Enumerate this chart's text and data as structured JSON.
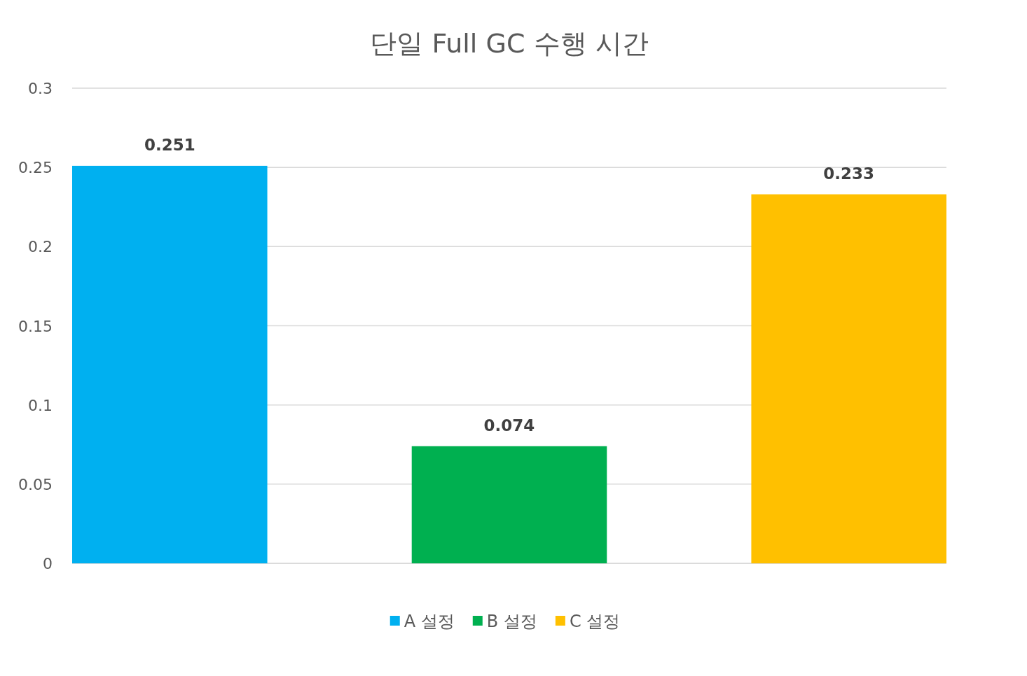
{
  "chart_data": {
    "type": "bar",
    "title": "단일 Full GC 수행 시간",
    "categories": [
      null
    ],
    "series": [
      {
        "name": "A 설정",
        "color": "#00b0f0",
        "values": [
          0.251
        ]
      },
      {
        "name": "B 설정",
        "color": "#00b050",
        "values": [
          0.074
        ]
      },
      {
        "name": "C 설정",
        "color": "#ffc000",
        "values": [
          0.233
        ]
      }
    ],
    "ylim": [
      0,
      0.3
    ],
    "yticks": [
      0,
      0.05,
      0.1,
      0.15,
      0.2,
      0.25,
      0.3
    ],
    "grid": "y",
    "legend": "bottom",
    "data_labels": true
  }
}
